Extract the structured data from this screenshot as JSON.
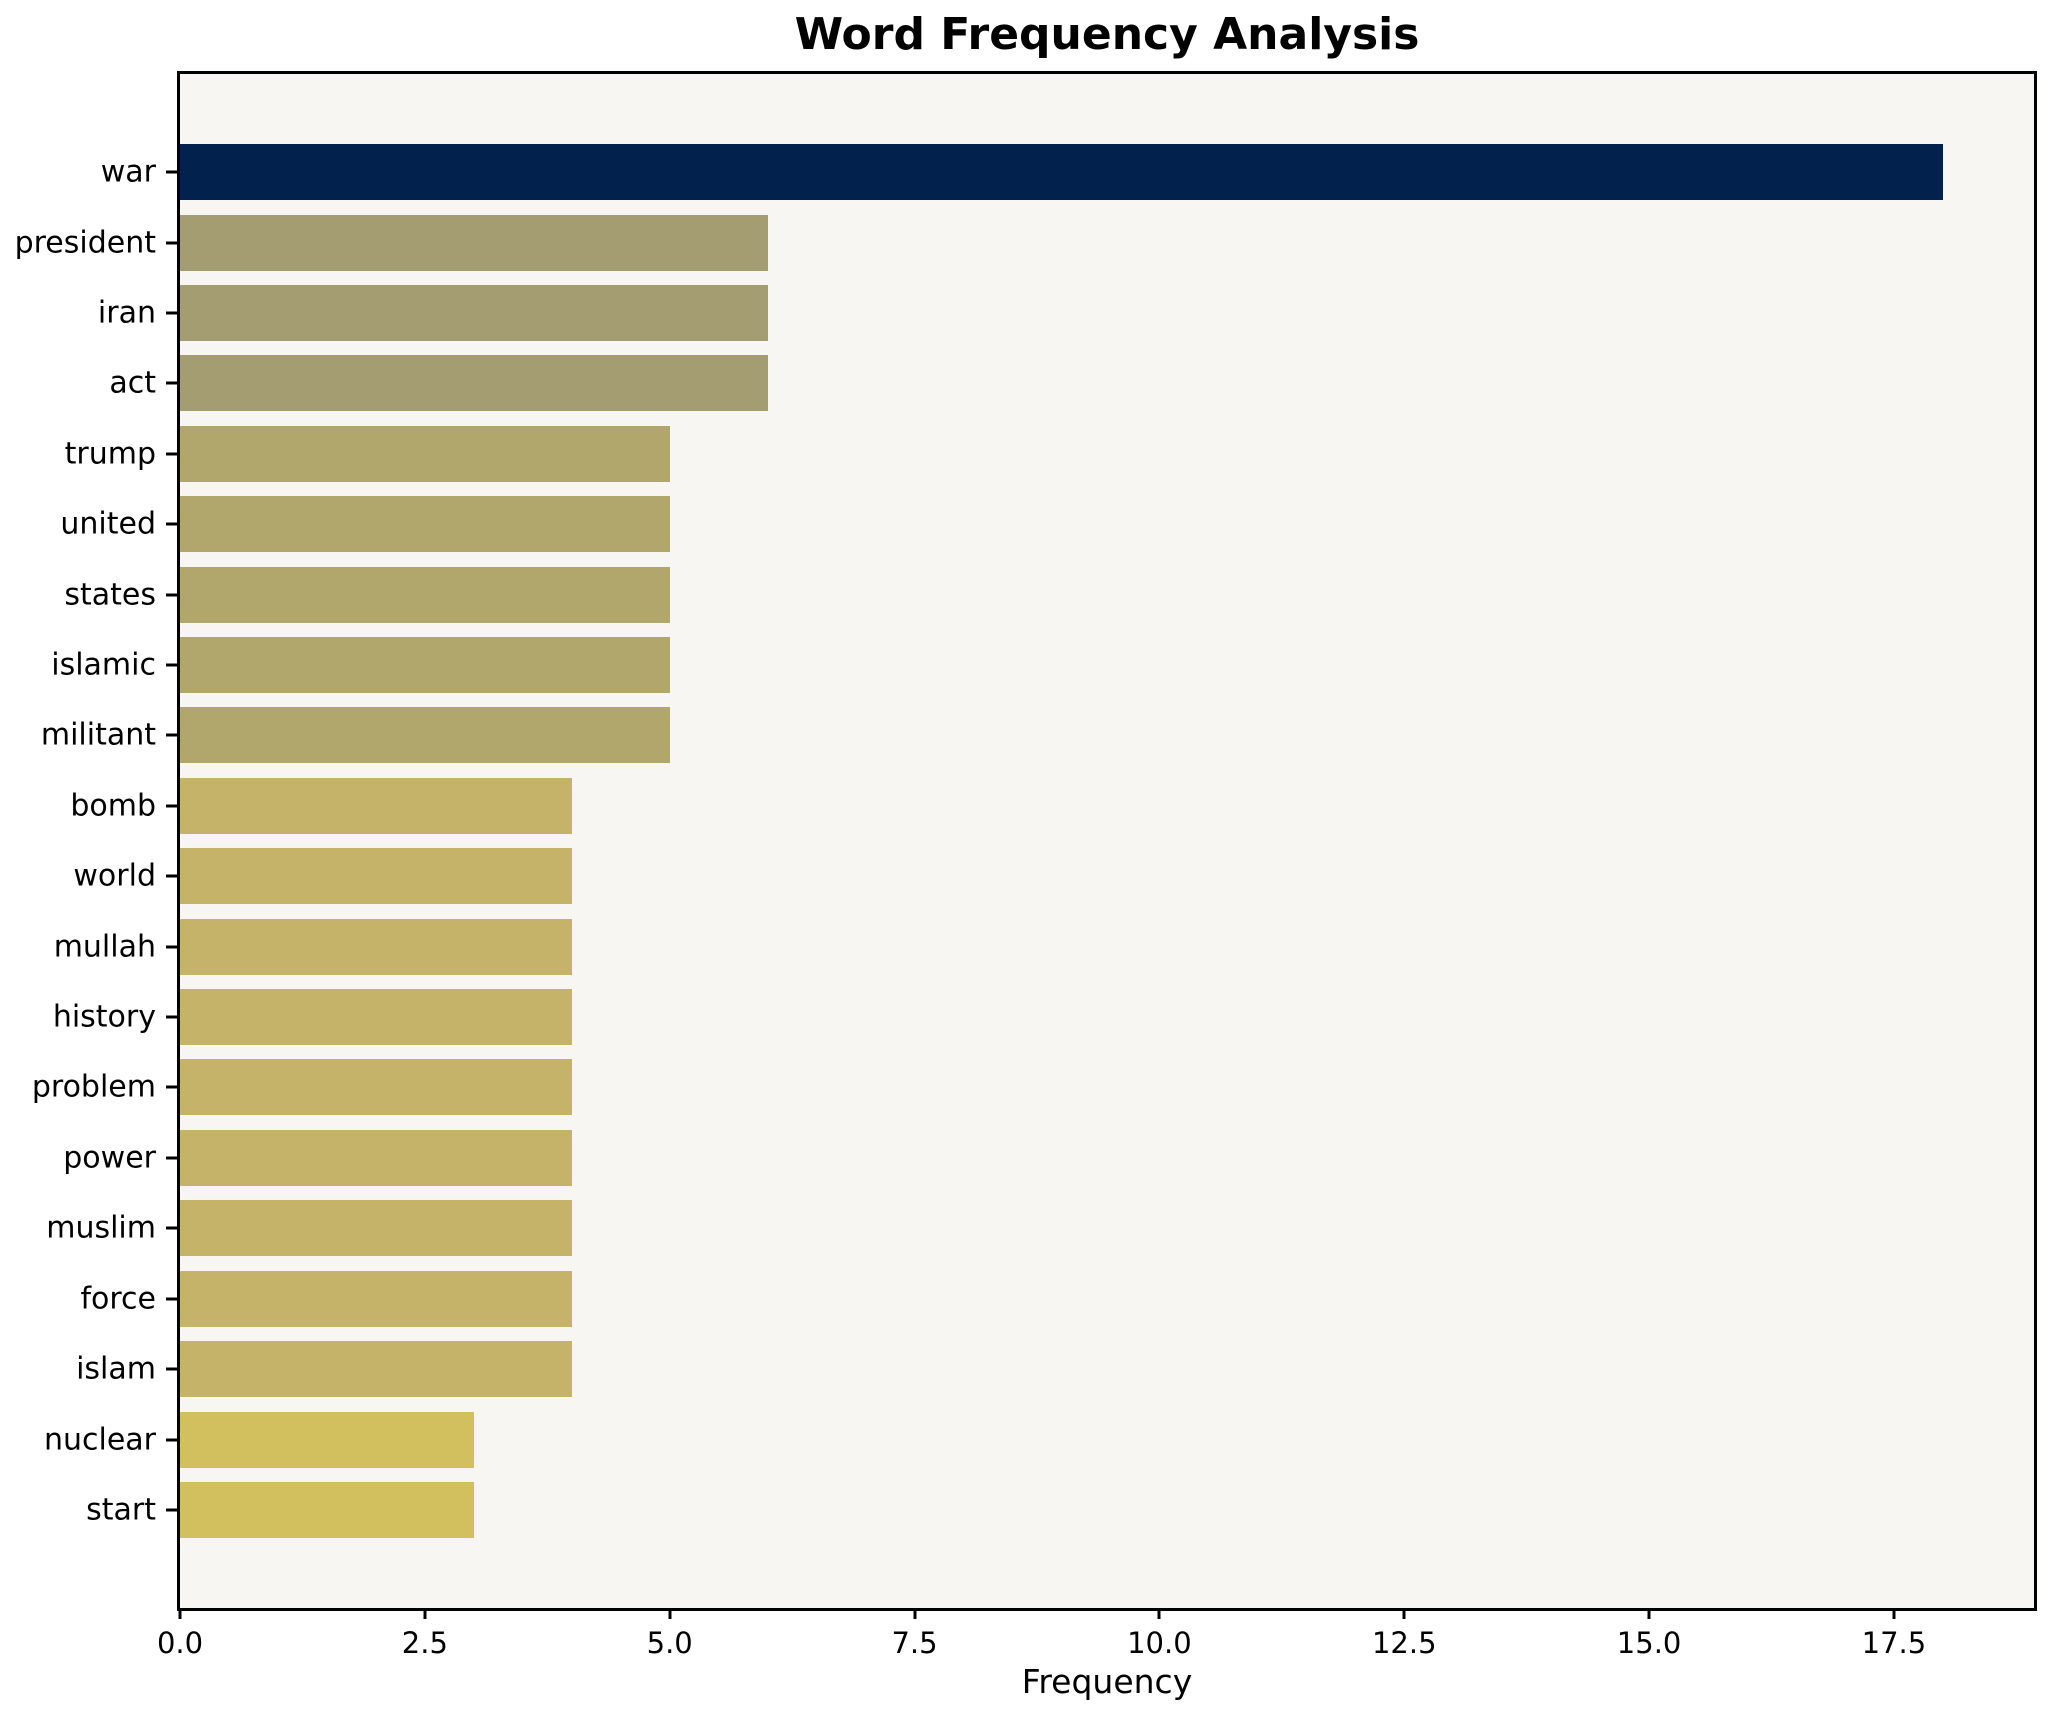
{
  "chart_data": {
    "type": "bar",
    "orientation": "horizontal",
    "title": "Word Frequency Analysis",
    "xlabel": "Frequency",
    "ylabel": "",
    "categories": [
      "war",
      "president",
      "iran",
      "act",
      "trump",
      "united",
      "states",
      "islamic",
      "militant",
      "bomb",
      "world",
      "mullah",
      "history",
      "problem",
      "power",
      "muslim",
      "force",
      "islam",
      "nuclear",
      "start"
    ],
    "values": [
      18,
      6,
      6,
      6,
      5,
      5,
      5,
      5,
      5,
      4,
      4,
      4,
      4,
      4,
      4,
      4,
      4,
      4,
      3,
      3
    ],
    "bar_colors": [
      "#02224d",
      "#a49d72",
      "#a49d72",
      "#a49d72",
      "#b1a76d",
      "#b1a76d",
      "#b1a76d",
      "#b1a76d",
      "#b1a76d",
      "#c4b369",
      "#c4b369",
      "#c4b369",
      "#c4b369",
      "#c4b369",
      "#c4b369",
      "#c4b369",
      "#c4b369",
      "#c4b369",
      "#d2c05f",
      "#d2c05f"
    ],
    "xlim": [
      0,
      18.93
    ],
    "xticks": [
      0,
      2.5,
      5,
      7.5,
      10,
      12.5,
      15,
      17.5
    ],
    "xtick_labels": [
      "0.0",
      "2.5",
      "5.0",
      "7.5",
      "10.0",
      "12.5",
      "15.0",
      "17.5"
    ],
    "grid": false,
    "legend": null,
    "bar_height_fraction": 0.8,
    "plot_background": "#f7f6f3",
    "figure_background": "#ffffff",
    "spine_color": "#000000",
    "text_color": "#000000"
  }
}
